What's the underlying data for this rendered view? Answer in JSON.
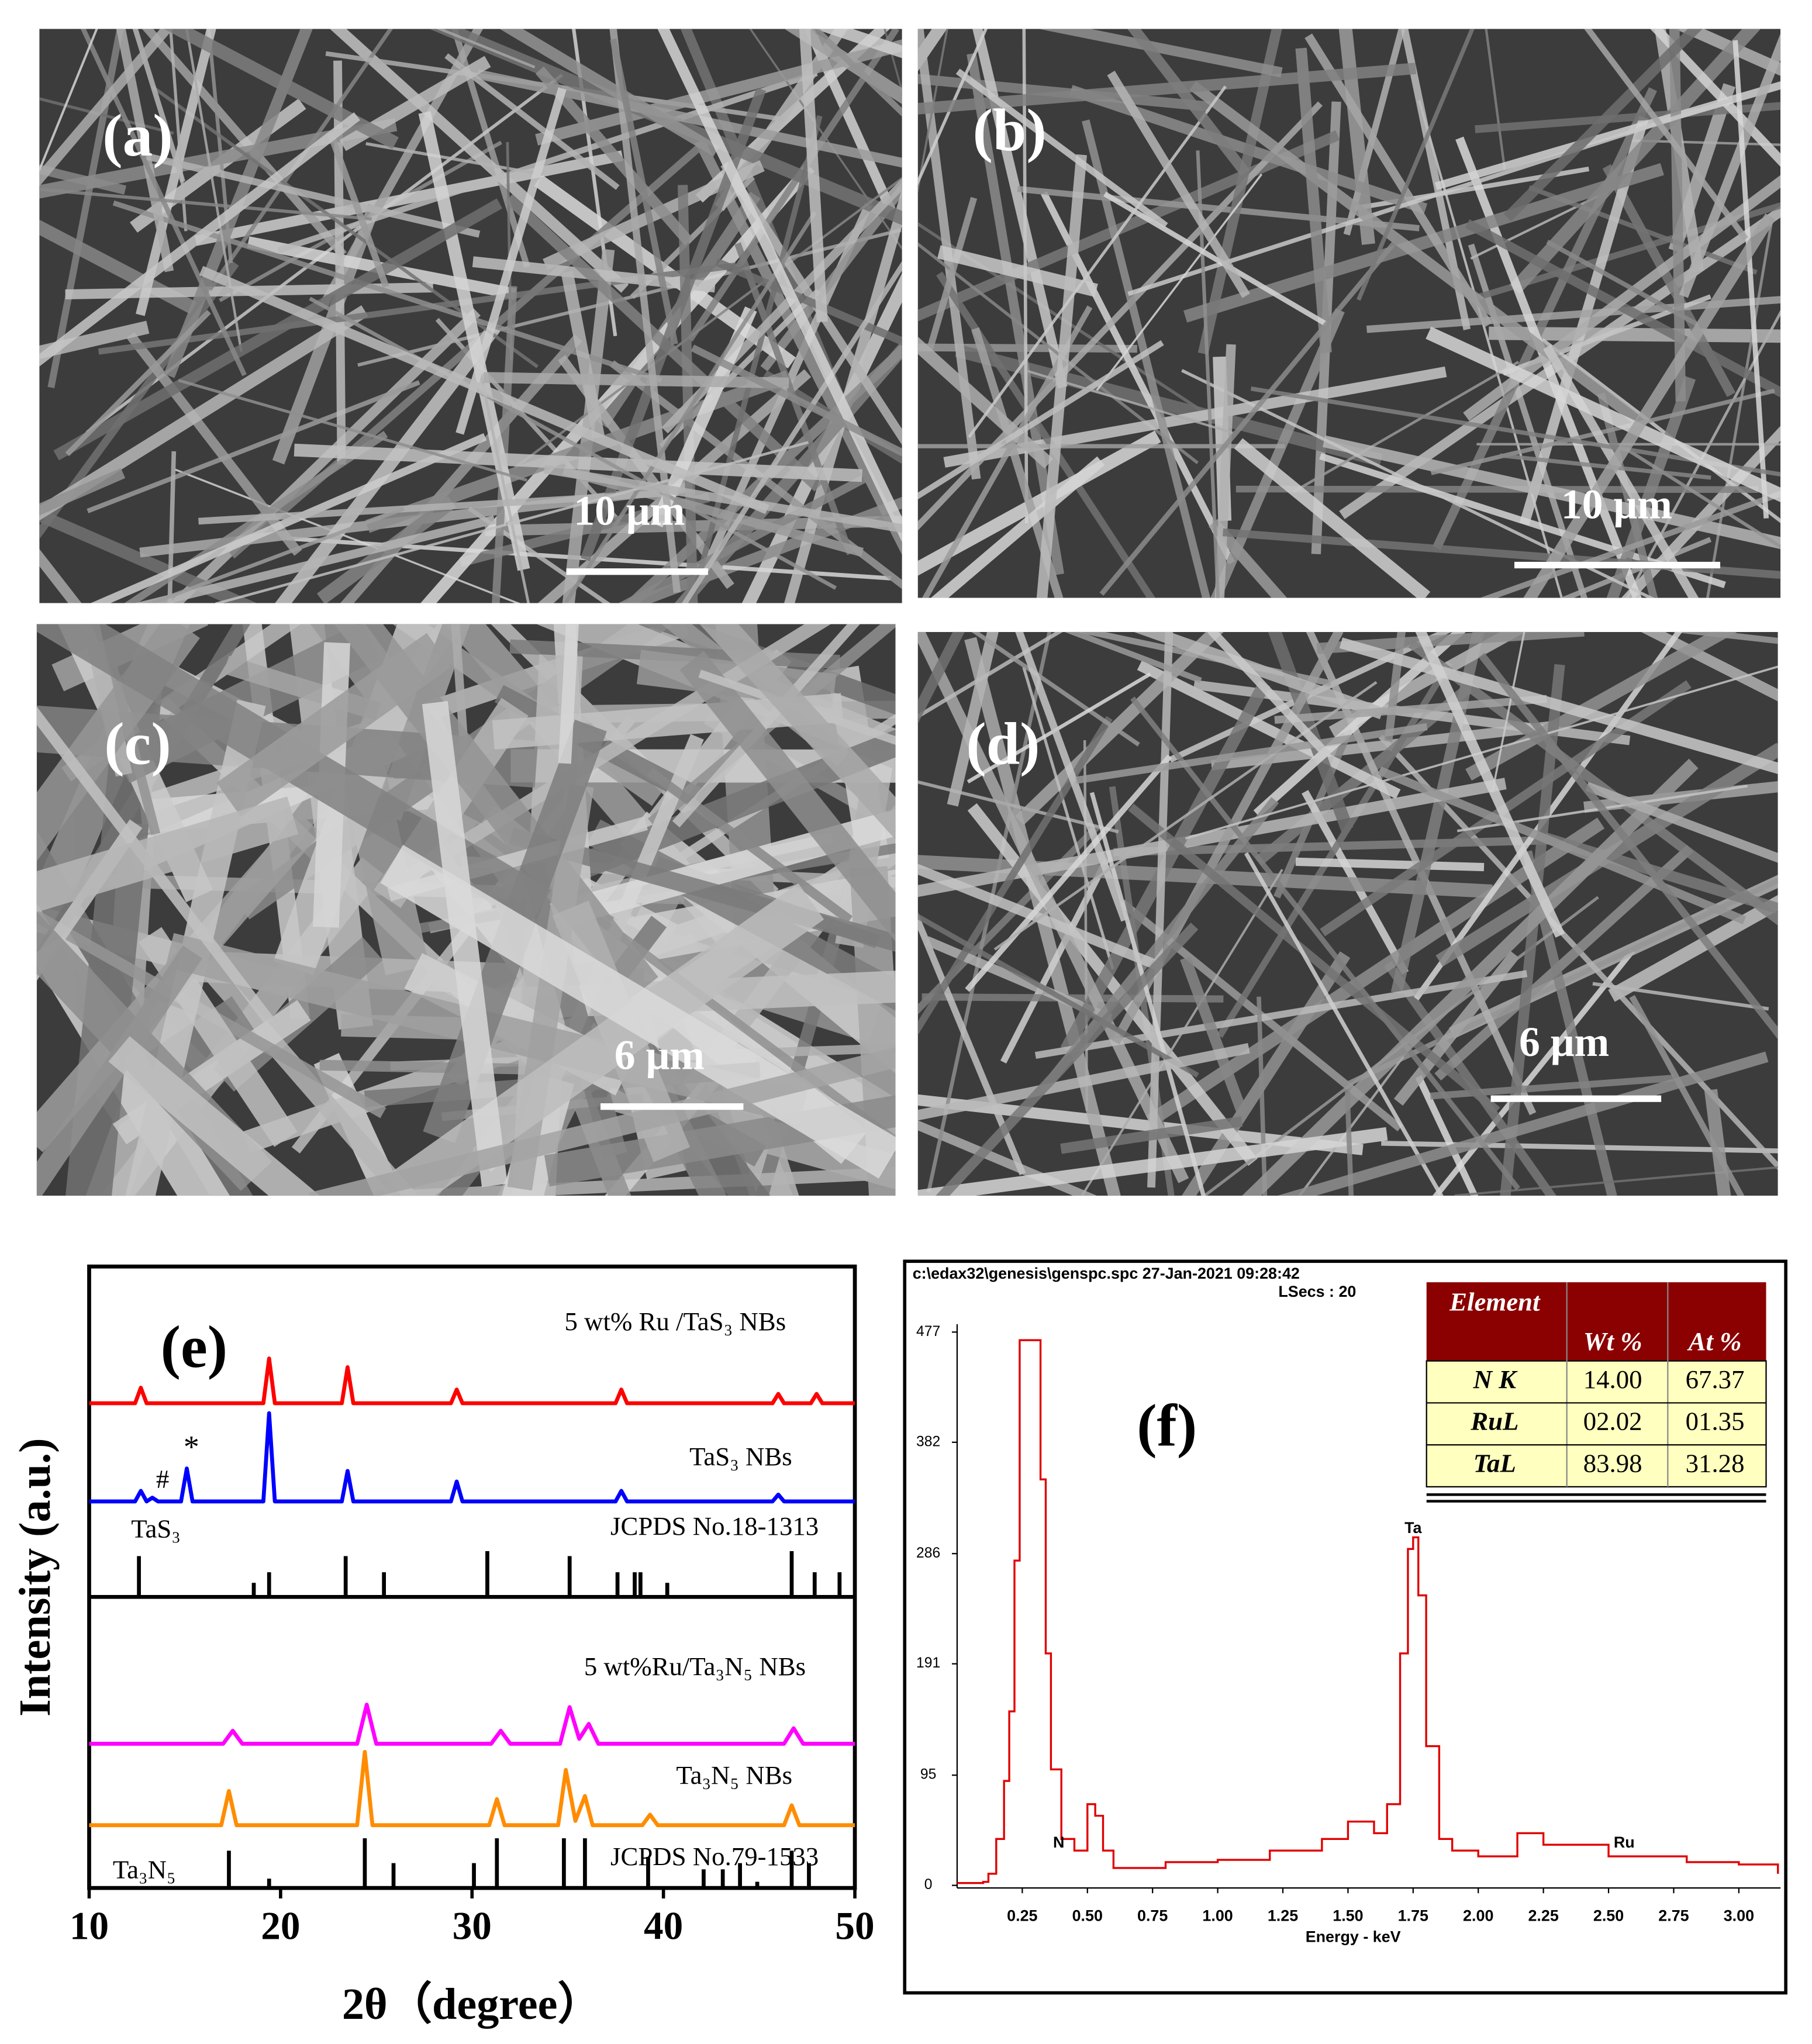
{
  "panels": [
    {
      "label": "(a)",
      "scale_bar": "10 μm"
    },
    {
      "label": "(b)",
      "scale_bar": "10 μm"
    },
    {
      "label": "(c)",
      "scale_bar": "6 μm"
    },
    {
      "label": "(d)",
      "scale_bar": "6 μm"
    }
  ],
  "chart_data": [
    {
      "type": "line",
      "panel_label": "(e)",
      "x_label": "2θ（degree）",
      "y_label": "Intensity (a.u.)",
      "xlim": [
        10,
        50
      ],
      "xticks": [
        10,
        20,
        30,
        40,
        50
      ],
      "ylim": [
        0,
        100
      ],
      "markers": [
        "#",
        "*"
      ],
      "series": [
        {
          "name": "5 wt% Ru /TaS₃ NBs",
          "style": "line",
          "color": "#ff0000",
          "x": [
            10,
            12.4,
            12.7,
            13.0,
            19.1,
            19.4,
            19.7,
            23.2,
            23.5,
            23.8,
            28.9,
            29.2,
            29.5,
            37.5,
            37.8,
            38.1,
            45.7,
            46.0,
            46.3,
            47.7,
            48.0,
            48.3,
            50
          ],
          "values": [
            78,
            78,
            80.5,
            78,
            78,
            85.2,
            78,
            78,
            83.8,
            78,
            78,
            80.2,
            78,
            78,
            80.2,
            78,
            78,
            79.5,
            78,
            78,
            79.5,
            78,
            78
          ]
        },
        {
          "name": "TaS₃ NBs",
          "style": "line",
          "color": "#0000ff",
          "x": [
            10,
            12.4,
            12.7,
            13.0,
            13.3,
            13.6,
            14.8,
            15.1,
            15.4,
            19.1,
            19.4,
            19.7,
            23.2,
            23.5,
            23.8,
            28.9,
            29.2,
            29.5,
            37.5,
            37.8,
            38.1,
            45.7,
            46.0,
            46.3,
            50
          ],
          "values": [
            62.2,
            62.2,
            63.9,
            62.2,
            62.8,
            62.2,
            62.2,
            67.5,
            62.2,
            62.2,
            76.4,
            62.2,
            62.2,
            67.1,
            62.2,
            62.2,
            65.4,
            62.2,
            62.2,
            63.9,
            62.2,
            62.2,
            63.3,
            62.2,
            62.2
          ]
        },
        {
          "name": "TaS₃",
          "reference": "JCPDS No.18-1313",
          "style": "sticks",
          "color": "#000000",
          "baseline": 46.8,
          "x": [
            12.6,
            18.6,
            19.4,
            23.4,
            25.4,
            30.8,
            35.1,
            37.6,
            38.5,
            38.8,
            40.2,
            46.7,
            47.9,
            49.2
          ],
          "values": [
            53.4,
            49.1,
            50.8,
            53.4,
            50.8,
            54.2,
            53.4,
            50.8,
            50.8,
            50.8,
            49.1,
            54.2,
            50.8,
            50.8
          ]
        },
        {
          "name": "5 wt%Ru/Ta₃N₅ NBs",
          "style": "line",
          "color": "#ff00ff",
          "x": [
            10,
            17.0,
            17.5,
            18.0,
            24.0,
            24.5,
            25.0,
            31.0,
            31.5,
            32.0,
            34.6,
            35.1,
            35.6,
            36.1,
            36.6,
            46.3,
            46.8,
            47.3,
            50
          ],
          "values": [
            23.2,
            23.2,
            25.3,
            23.2,
            23.2,
            29.5,
            23.2,
            23.2,
            25.3,
            23.2,
            23.2,
            29.1,
            24.0,
            26.4,
            23.2,
            23.2,
            25.7,
            23.2,
            23.2
          ]
        },
        {
          "name": "Ta₃N₅ NBs",
          "style": "line",
          "color": "#ff8c00",
          "x": [
            10,
            16.9,
            17.3,
            17.7,
            24.0,
            24.4,
            24.8,
            30.9,
            31.3,
            31.7,
            34.5,
            34.9,
            35.4,
            35.9,
            36.3,
            38.9,
            39.3,
            39.7,
            46.3,
            46.7,
            47.1,
            50
          ],
          "values": [
            10.1,
            10.1,
            15.6,
            10.1,
            10.1,
            21.9,
            10.1,
            10.1,
            14.3,
            10.1,
            10.1,
            19,
            10.8,
            14.8,
            10.1,
            10.1,
            11.8,
            10.1,
            10.1,
            13.3,
            10.1,
            10.1
          ]
        },
        {
          "name": "Ta₃N₅",
          "reference": "JCPDS No.79-1533",
          "style": "sticks",
          "color": "#000000",
          "baseline": 0,
          "x": [
            17.3,
            19.4,
            24.4,
            25.9,
            30.1,
            31.3,
            34.8,
            35.9,
            39.2,
            42.1,
            43.1,
            44.0,
            44.9,
            46.7,
            47.6
          ],
          "values": [
            6,
            1.5,
            8,
            4,
            4,
            8,
            8,
            8,
            5,
            3,
            3,
            4,
            1,
            6,
            4
          ]
        }
      ]
    },
    {
      "type": "line",
      "panel_label": "(f)",
      "header": "c:\\edax32\\genesis\\genspc.spc  27-Jan-2021 09:28:42",
      "subheader": "LSecs :  20",
      "x_label": "Energy - keV",
      "xlim": [
        0,
        3.16
      ],
      "xticks": [
        0.25,
        {
          "value": 0.5,
          "label": "0.50"
        },
        0.75,
        {
          "value": 1,
          "label": "1.00"
        },
        1.25,
        {
          "value": 1.5,
          "label": "1.50"
        },
        1.75,
        {
          "value": 2,
          "label": "2.00"
        },
        2.25,
        {
          "value": 2.5,
          "label": "2.50"
        },
        2.75,
        {
          "value": 3,
          "label": "3.00"
        }
      ],
      "ylim": [
        0,
        477
      ],
      "yticks": [
        0,
        95,
        191,
        286,
        382,
        477
      ],
      "peak_labels": [
        {
          "text": "N",
          "x": 0.39
        },
        {
          "text": "Ta",
          "x": 1.75
        },
        {
          "text": "Ru",
          "x": 2.56
        }
      ],
      "series": [
        {
          "color": "#e00000",
          "x": [
            0,
            0.1,
            0.12,
            0.15,
            0.18,
            0.2,
            0.22,
            0.24,
            0.3,
            0.32,
            0.34,
            0.36,
            0.4,
            0.45,
            0.5,
            0.53,
            0.56,
            0.6,
            0.7,
            0.8,
            1.0,
            1.2,
            1.4,
            1.5,
            1.6,
            1.65,
            1.7,
            1.73,
            1.75,
            1.77,
            1.8,
            1.85,
            1.9,
            2.0,
            2.15,
            2.25,
            2.5,
            2.6,
            2.8,
            3.0,
            3.15
          ],
          "values": [
            2,
            3,
            10,
            40,
            90,
            150,
            280,
            470,
            470,
            350,
            200,
            100,
            40,
            30,
            70,
            60,
            30,
            15,
            15,
            20,
            22,
            30,
            40,
            55,
            45,
            70,
            200,
            290,
            300,
            250,
            120,
            40,
            30,
            25,
            45,
            35,
            25,
            25,
            20,
            18,
            10
          ]
        }
      ],
      "table": {
        "headers": [
          "Element",
          "Wt %",
          "At %"
        ],
        "rows": [
          [
            "N K",
            "14.00",
            "67.37"
          ],
          [
            "RuL",
            "02.02",
            "01.35"
          ],
          [
            "TaL",
            "83.98",
            "31.28"
          ]
        ]
      }
    }
  ]
}
